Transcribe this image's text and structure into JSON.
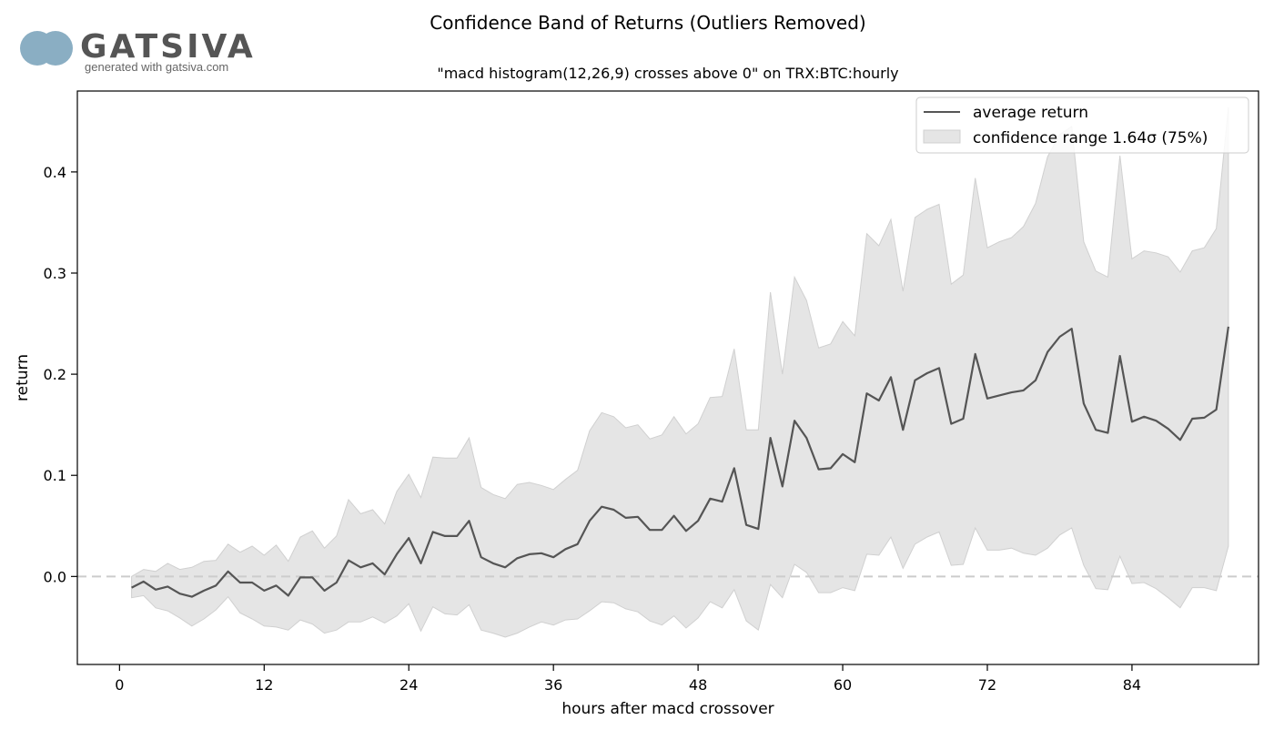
{
  "logo": {
    "name": "GATSIVA",
    "tagline": "generated with gatsiva.com"
  },
  "chart_data": {
    "type": "area",
    "title": "Confidence Band of Returns (Outliers Removed)",
    "subtitle": "\"macd histogram(12,26,9) crosses above 0\" on TRX:BTC:hourly",
    "xlabel": "hours after macd crossover",
    "ylabel": "return",
    "xlim": [
      -3.5,
      94.5
    ],
    "ylim": [
      -0.087,
      0.48
    ],
    "xticks": [
      0,
      12,
      24,
      36,
      48,
      60,
      72,
      84
    ],
    "yticks": [
      0.0,
      0.1,
      0.2,
      0.3,
      0.4
    ],
    "ytick_labels": [
      "0.0",
      "0.1",
      "0.2",
      "0.3",
      "0.4"
    ],
    "reference_line": {
      "y": 0,
      "style": "dashed",
      "color": "#cccccc"
    },
    "legend": {
      "position": "top-right",
      "average_label": "average return",
      "band_label": "confidence range 1.64σ (75%)"
    },
    "colors": {
      "line": "#555555",
      "band": "#e5e5e5",
      "band_edge": "#d0d0d0",
      "axes": "#000000"
    },
    "series": [
      {
        "name": "average return",
        "x": [
          1,
          2,
          3,
          4,
          5,
          6,
          7,
          8,
          9,
          10,
          11,
          12,
          13,
          14,
          15,
          16,
          17,
          18,
          19,
          20,
          21,
          22,
          23,
          24,
          25,
          26,
          27,
          28,
          29,
          30,
          31,
          32,
          33,
          34,
          35,
          36,
          37,
          38,
          39,
          40,
          41,
          42,
          43,
          44,
          45,
          46,
          47,
          48,
          49,
          50,
          51,
          52,
          53,
          54,
          55,
          56,
          57,
          58,
          59,
          60,
          61,
          62,
          63,
          64,
          65,
          66,
          67,
          68,
          69,
          70,
          71,
          72,
          73,
          74,
          75,
          76,
          77,
          78,
          79,
          80,
          81,
          82,
          83,
          84,
          85,
          86,
          87,
          88,
          89,
          90,
          91,
          92
        ],
        "values": [
          -0.011,
          -0.005,
          -0.013,
          -0.01,
          -0.017,
          -0.02,
          -0.014,
          -0.009,
          0.005,
          -0.006,
          -0.006,
          -0.014,
          -0.009,
          -0.019,
          -0.001,
          -0.001,
          -0.014,
          -0.006,
          0.016,
          0.009,
          0.013,
          0.002,
          0.022,
          0.038,
          0.013,
          0.044,
          0.04,
          0.04,
          0.055,
          0.019,
          0.013,
          0.009,
          0.018,
          0.022,
          0.023,
          0.019,
          0.027,
          0.032,
          0.055,
          0.069,
          0.066,
          0.058,
          0.059,
          0.046,
          0.046,
          0.06,
          0.045,
          0.055,
          0.077,
          0.074,
          0.107,
          0.051,
          0.047,
          0.137,
          0.089,
          0.154,
          0.137,
          0.106,
          0.107,
          0.121,
          0.113,
          0.181,
          0.174,
          0.197,
          0.145,
          0.194,
          0.201,
          0.206,
          0.151,
          0.156,
          0.22,
          0.176,
          0.179,
          0.182,
          0.184,
          0.194,
          0.222,
          0.237,
          0.245,
          0.171,
          0.145,
          0.142,
          0.218,
          0.153,
          0.158,
          0.154,
          0.146,
          0.135,
          0.156,
          0.157,
          0.165,
          0.247
        ]
      },
      {
        "name": "confidence range 1.64σ (75%)",
        "x": [
          1,
          2,
          3,
          4,
          5,
          6,
          7,
          8,
          9,
          10,
          11,
          12,
          13,
          14,
          15,
          16,
          17,
          18,
          19,
          20,
          21,
          22,
          23,
          24,
          25,
          26,
          27,
          28,
          29,
          30,
          31,
          32,
          33,
          34,
          35,
          36,
          37,
          38,
          39,
          40,
          41,
          42,
          43,
          44,
          45,
          46,
          47,
          48,
          49,
          50,
          51,
          52,
          53,
          54,
          55,
          56,
          57,
          58,
          59,
          60,
          61,
          62,
          63,
          64,
          65,
          66,
          67,
          68,
          69,
          70,
          71,
          72,
          73,
          74,
          75,
          76,
          77,
          78,
          79,
          80,
          81,
          82,
          83,
          84,
          85,
          86,
          87,
          88,
          89,
          90,
          91,
          92
        ],
        "upper": [
          0.0,
          0.007,
          0.005,
          0.013,
          0.007,
          0.009,
          0.015,
          0.016,
          0.032,
          0.024,
          0.03,
          0.021,
          0.031,
          0.015,
          0.039,
          0.045,
          0.028,
          0.04,
          0.076,
          0.062,
          0.066,
          0.052,
          0.084,
          0.101,
          0.078,
          0.118,
          0.117,
          0.117,
          0.137,
          0.088,
          0.081,
          0.077,
          0.091,
          0.093,
          0.09,
          0.086,
          0.096,
          0.105,
          0.144,
          0.162,
          0.158,
          0.147,
          0.15,
          0.136,
          0.14,
          0.158,
          0.141,
          0.151,
          0.177,
          0.178,
          0.225,
          0.145,
          0.145,
          0.281,
          0.2,
          0.296,
          0.273,
          0.226,
          0.23,
          0.252,
          0.238,
          0.339,
          0.327,
          0.353,
          0.282,
          0.355,
          0.363,
          0.368,
          0.289,
          0.298,
          0.394,
          0.325,
          0.331,
          0.335,
          0.346,
          0.369,
          0.415,
          0.437,
          0.445,
          0.331,
          0.302,
          0.296,
          0.416,
          0.314,
          0.322,
          0.32,
          0.316,
          0.301,
          0.322,
          0.325,
          0.344,
          0.464
        ],
        "lower": [
          -0.021,
          -0.019,
          -0.031,
          -0.034,
          -0.041,
          -0.049,
          -0.042,
          -0.033,
          -0.02,
          -0.036,
          -0.042,
          -0.049,
          -0.05,
          -0.053,
          -0.043,
          -0.047,
          -0.056,
          -0.053,
          -0.045,
          -0.045,
          -0.04,
          -0.046,
          -0.039,
          -0.027,
          -0.054,
          -0.03,
          -0.037,
          -0.038,
          -0.028,
          -0.053,
          -0.056,
          -0.06,
          -0.056,
          -0.05,
          -0.045,
          -0.048,
          -0.043,
          -0.042,
          -0.034,
          -0.025,
          -0.026,
          -0.032,
          -0.035,
          -0.044,
          -0.048,
          -0.039,
          -0.051,
          -0.041,
          -0.025,
          -0.031,
          -0.013,
          -0.044,
          -0.053,
          -0.008,
          -0.021,
          0.012,
          0.004,
          -0.016,
          -0.016,
          -0.011,
          -0.014,
          0.022,
          0.021,
          0.039,
          0.008,
          0.032,
          0.039,
          0.044,
          0.011,
          0.012,
          0.048,
          0.026,
          0.026,
          0.028,
          0.023,
          0.021,
          0.028,
          0.041,
          0.048,
          0.011,
          -0.012,
          -0.013,
          0.02,
          -0.007,
          -0.006,
          -0.012,
          -0.021,
          -0.031,
          -0.011,
          -0.011,
          -0.014,
          0.03
        ]
      }
    ]
  }
}
